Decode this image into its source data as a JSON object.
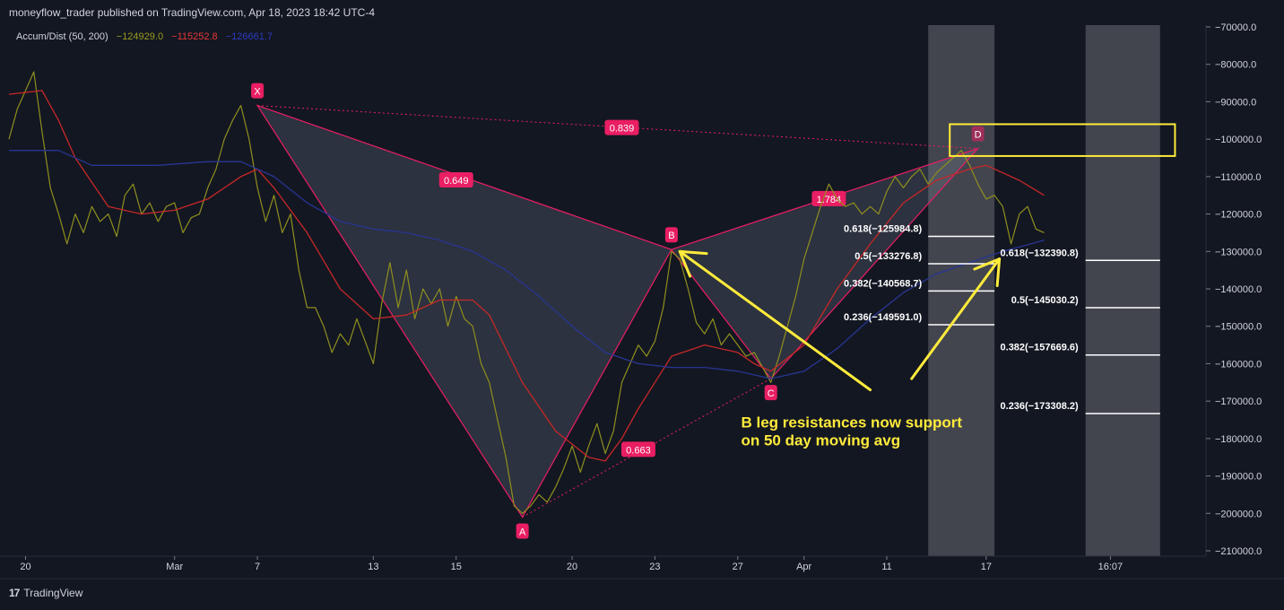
{
  "header": {
    "publish_line": "moneyflow_trader published on TradingView.com, Apr 18, 2023 18:42 UTC-4"
  },
  "indicator": {
    "name": "Accum/Dist (50, 200)",
    "values": [
      {
        "text": "−124929.0",
        "color": "#9a9a1c"
      },
      {
        "text": "−115252.8",
        "color": "#e53935"
      },
      {
        "text": "−126661.7",
        "color": "#2f3bbf"
      }
    ]
  },
  "footer": {
    "logo_text": "TradingView"
  },
  "colors": {
    "background": "#131722",
    "price": "#8f8f1e",
    "ma50": "#c62828",
    "ma200": "#283593",
    "pattern": "#e91e63",
    "annotation": "#ffeb3b",
    "fib": "#ffffff"
  },
  "chart_data": {
    "type": "line",
    "y_axis": {
      "range": [
        -210000,
        -70000
      ],
      "ticks": [
        -70000,
        -80000,
        -90000,
        -100000,
        -110000,
        -120000,
        -130000,
        -140000,
        -150000,
        -160000,
        -170000,
        -180000,
        -190000,
        -200000,
        -210000
      ],
      "tick_labels": [
        "−70000.0",
        "−80000.0",
        "−90000.0",
        "−100000.0",
        "−110000.0",
        "−120000.0",
        "−130000.0",
        "−140000.0",
        "−150000.0",
        "−160000.0",
        "−170000.0",
        "−180000.0",
        "−190000.0",
        "−200000.0",
        "−210000.0"
      ]
    },
    "x_axis": {
      "range": [
        0,
        72
      ],
      "ticks": [
        {
          "x": 1,
          "label": "20"
        },
        {
          "x": 10,
          "label": "Mar"
        },
        {
          "x": 15,
          "label": "7"
        },
        {
          "x": 22,
          "label": "13"
        },
        {
          "x": 27,
          "label": "15"
        },
        {
          "x": 34,
          "label": "20"
        },
        {
          "x": 39,
          "label": "23"
        },
        {
          "x": 44,
          "label": "27"
        },
        {
          "x": 48,
          "label": "Apr"
        },
        {
          "x": 53,
          "label": "11"
        },
        {
          "x": 59,
          "label": "17"
        },
        {
          "x": 66.5,
          "label": "16:07"
        }
      ]
    },
    "series": [
      {
        "key": "price",
        "values": [
          [
            0,
            -100000
          ],
          [
            0.5,
            -92000
          ],
          [
            1,
            -87000
          ],
          [
            1.5,
            -82000
          ],
          [
            2,
            -98000
          ],
          [
            2.5,
            -113000
          ],
          [
            3,
            -120000
          ],
          [
            3.5,
            -128000
          ],
          [
            4,
            -120000
          ],
          [
            4.5,
            -125000
          ],
          [
            5,
            -118000
          ],
          [
            5.5,
            -122000
          ],
          [
            6,
            -120000
          ],
          [
            6.5,
            -126000
          ],
          [
            7,
            -115000
          ],
          [
            7.5,
            -112000
          ],
          [
            8,
            -120000
          ],
          [
            8.5,
            -117000
          ],
          [
            9,
            -122000
          ],
          [
            9.5,
            -118000
          ],
          [
            10,
            -117000
          ],
          [
            10.5,
            -125000
          ],
          [
            11,
            -121000
          ],
          [
            11.5,
            -120000
          ],
          [
            12,
            -113000
          ],
          [
            12.5,
            -108000
          ],
          [
            13,
            -100000
          ],
          [
            13.5,
            -95000
          ],
          [
            14,
            -91000
          ],
          [
            14.5,
            -100000
          ],
          [
            15,
            -113000
          ],
          [
            15.5,
            -122000
          ],
          [
            16,
            -115000
          ],
          [
            16.5,
            -125000
          ],
          [
            17,
            -120000
          ],
          [
            17.5,
            -135000
          ],
          [
            18,
            -145000
          ],
          [
            18.5,
            -145000
          ],
          [
            19,
            -150000
          ],
          [
            19.5,
            -157000
          ],
          [
            20,
            -152000
          ],
          [
            20.5,
            -155000
          ],
          [
            21,
            -148000
          ],
          [
            21.5,
            -154000
          ],
          [
            22,
            -160000
          ],
          [
            22.5,
            -144000
          ],
          [
            23,
            -133000
          ],
          [
            23.5,
            -145000
          ],
          [
            24,
            -135000
          ],
          [
            24.5,
            -148000
          ],
          [
            25,
            -140000
          ],
          [
            25.5,
            -144000
          ],
          [
            26,
            -140000
          ],
          [
            26.5,
            -150000
          ],
          [
            27,
            -142000
          ],
          [
            27.5,
            -148000
          ],
          [
            28,
            -150000
          ],
          [
            28.5,
            -160000
          ],
          [
            29,
            -165000
          ],
          [
            29.5,
            -175000
          ],
          [
            30,
            -185000
          ],
          [
            30.5,
            -198000
          ],
          [
            31,
            -200000
          ],
          [
            31.5,
            -198000
          ],
          [
            32,
            -195000
          ],
          [
            32.5,
            -197000
          ],
          [
            33,
            -193000
          ],
          [
            33.5,
            -188000
          ],
          [
            34,
            -182000
          ],
          [
            34.5,
            -189000
          ],
          [
            35,
            -182000
          ],
          [
            35.5,
            -176000
          ],
          [
            36,
            -184000
          ],
          [
            36.5,
            -178000
          ],
          [
            37,
            -165000
          ],
          [
            37.5,
            -160000
          ],
          [
            38,
            -155000
          ],
          [
            38.5,
            -158000
          ],
          [
            39,
            -154000
          ],
          [
            39.5,
            -145000
          ],
          [
            40,
            -130000
          ],
          [
            40.5,
            -132000
          ],
          [
            41,
            -140000
          ],
          [
            41.5,
            -149000
          ],
          [
            42,
            -152000
          ],
          [
            42.5,
            -148000
          ],
          [
            43,
            -155000
          ],
          [
            43.5,
            -152000
          ],
          [
            44,
            -155000
          ],
          [
            44.5,
            -158000
          ],
          [
            45,
            -157000
          ],
          [
            45.5,
            -161000
          ],
          [
            46,
            -165000
          ],
          [
            46.5,
            -158000
          ],
          [
            47,
            -150000
          ],
          [
            47.5,
            -142000
          ],
          [
            48,
            -132000
          ],
          [
            48.5,
            -125000
          ],
          [
            49,
            -118000
          ],
          [
            49.5,
            -112000
          ],
          [
            50,
            -116000
          ],
          [
            50.5,
            -118000
          ],
          [
            51,
            -117000
          ],
          [
            51.5,
            -120000
          ],
          [
            52,
            -118000
          ],
          [
            52.5,
            -120000
          ],
          [
            53,
            -114000
          ],
          [
            53.5,
            -110000
          ],
          [
            54,
            -113000
          ],
          [
            54.5,
            -110000
          ],
          [
            55,
            -108000
          ],
          [
            55.5,
            -112000
          ],
          [
            56,
            -109000
          ],
          [
            56.5,
            -107000
          ],
          [
            57,
            -105000
          ],
          [
            57.5,
            -103000
          ],
          [
            58,
            -107000
          ],
          [
            58.5,
            -112000
          ],
          [
            59,
            -116000
          ],
          [
            59.5,
            -115000
          ],
          [
            60,
            -118000
          ],
          [
            60.5,
            -128000
          ],
          [
            61,
            -120000
          ],
          [
            61.5,
            -118000
          ],
          [
            62,
            -124000
          ],
          [
            62.5,
            -125000
          ]
        ]
      },
      {
        "key": "ma50",
        "values": [
          [
            0,
            -88000
          ],
          [
            2,
            -87000
          ],
          [
            3,
            -95000
          ],
          [
            4,
            -105000
          ],
          [
            6,
            -118000
          ],
          [
            8,
            -120000
          ],
          [
            10,
            -119000
          ],
          [
            12,
            -116000
          ],
          [
            14,
            -110000
          ],
          [
            15,
            -108000
          ],
          [
            16,
            -113000
          ],
          [
            18,
            -125000
          ],
          [
            20,
            -140000
          ],
          [
            22,
            -148000
          ],
          [
            24,
            -147000
          ],
          [
            26,
            -143000
          ],
          [
            28,
            -143000
          ],
          [
            29,
            -147000
          ],
          [
            31,
            -165000
          ],
          [
            33,
            -178000
          ],
          [
            35,
            -185000
          ],
          [
            36,
            -186000
          ],
          [
            37,
            -180000
          ],
          [
            38,
            -172000
          ],
          [
            39,
            -165000
          ],
          [
            40,
            -158000
          ],
          [
            42,
            -155000
          ],
          [
            44,
            -157000
          ],
          [
            45,
            -160000
          ],
          [
            46,
            -162000
          ],
          [
            48,
            -155000
          ],
          [
            50,
            -140000
          ],
          [
            52,
            -128000
          ],
          [
            54,
            -117000
          ],
          [
            56,
            -111000
          ],
          [
            58,
            -108000
          ],
          [
            59,
            -107000
          ],
          [
            61,
            -111000
          ],
          [
            62.5,
            -115000
          ]
        ]
      },
      {
        "key": "ma200",
        "values": [
          [
            0,
            -103000
          ],
          [
            3,
            -103000
          ],
          [
            5,
            -107000
          ],
          [
            7,
            -107000
          ],
          [
            9,
            -107000
          ],
          [
            12,
            -106000
          ],
          [
            14,
            -106000
          ],
          [
            15,
            -108000
          ],
          [
            16,
            -110000
          ],
          [
            18,
            -117000
          ],
          [
            20,
            -122000
          ],
          [
            22,
            -124000
          ],
          [
            24,
            -125000
          ],
          [
            26,
            -127000
          ],
          [
            28,
            -130000
          ],
          [
            30,
            -135000
          ],
          [
            32,
            -142000
          ],
          [
            34,
            -150000
          ],
          [
            36,
            -157000
          ],
          [
            38,
            -160000
          ],
          [
            40,
            -161000
          ],
          [
            42,
            -161000
          ],
          [
            44,
            -162000
          ],
          [
            46,
            -164000
          ],
          [
            48,
            -162000
          ],
          [
            50,
            -156000
          ],
          [
            52,
            -148000
          ],
          [
            54,
            -141000
          ],
          [
            56,
            -136000
          ],
          [
            58,
            -133000
          ],
          [
            60,
            -130000
          ],
          [
            62.5,
            -127000
          ]
        ]
      }
    ],
    "pattern": {
      "points": [
        {
          "label": "X",
          "x": 15,
          "y": -91000
        },
        {
          "label": "A",
          "x": 31,
          "y": -201000
        },
        {
          "label": "B",
          "x": 40,
          "y": -129500
        },
        {
          "label": "C",
          "x": 46,
          "y": -164000
        },
        {
          "label": "D",
          "x": 58.5,
          "y": -102500
        }
      ],
      "ratios": [
        {
          "label": "0.649",
          "x": 27,
          "y": -111000
        },
        {
          "label": "0.839",
          "x": 37,
          "y": -97000
        },
        {
          "label": "0.663",
          "x": 38,
          "y": -183000
        },
        {
          "label": "1.784",
          "x": 49.5,
          "y": -116000
        }
      ]
    },
    "fib_levels": [
      {
        "label": "0.618(−125984.8)",
        "y": -125984.8,
        "x1": 55.5,
        "x2": 59.5,
        "side": "left"
      },
      {
        "label": "0.5(−133276.8)",
        "y": -133276.8,
        "x1": 55.5,
        "x2": 59.5,
        "side": "left"
      },
      {
        "label": "0.382(−140568.7)",
        "y": -140568.7,
        "x1": 55.5,
        "x2": 59.5,
        "side": "left"
      },
      {
        "label": "0.236(−149591.0)",
        "y": -149591.0,
        "x1": 55.5,
        "x2": 59.5,
        "side": "left"
      },
      {
        "label": "0.618(−132390.8)",
        "y": -132390.8,
        "x1": 65,
        "x2": 69.5,
        "side": "above"
      },
      {
        "label": "0.5(−145030.2)",
        "y": -145030.2,
        "x1": 65,
        "x2": 69.5,
        "side": "above"
      },
      {
        "label": "0.382(−157669.6)",
        "y": -157669.6,
        "x1": 65,
        "x2": 69.5,
        "side": "above"
      },
      {
        "label": "0.236(−173308.2)",
        "y": -173308.2,
        "x1": 65,
        "x2": 69.5,
        "side": "above"
      }
    ],
    "shaded_zones": [
      {
        "x1": 55.5,
        "x2": 59.5
      },
      {
        "x1": 65,
        "x2": 69.5
      }
    ],
    "target_box": {
      "x1": 56.8,
      "x2": 70.4,
      "y1": -96000,
      "y2": -104500
    },
    "annotation_text": [
      "B leg resistances now support",
      "on 50 day moving avg"
    ],
    "annotation_position": {
      "x": 44.2,
      "y": -177000
    },
    "arrows": [
      {
        "from": [
          52,
          -167000
        ],
        "to": [
          40.5,
          -130000
        ]
      },
      {
        "from": [
          54.5,
          -164000
        ],
        "to": [
          59.8,
          -132000
        ]
      }
    ]
  }
}
